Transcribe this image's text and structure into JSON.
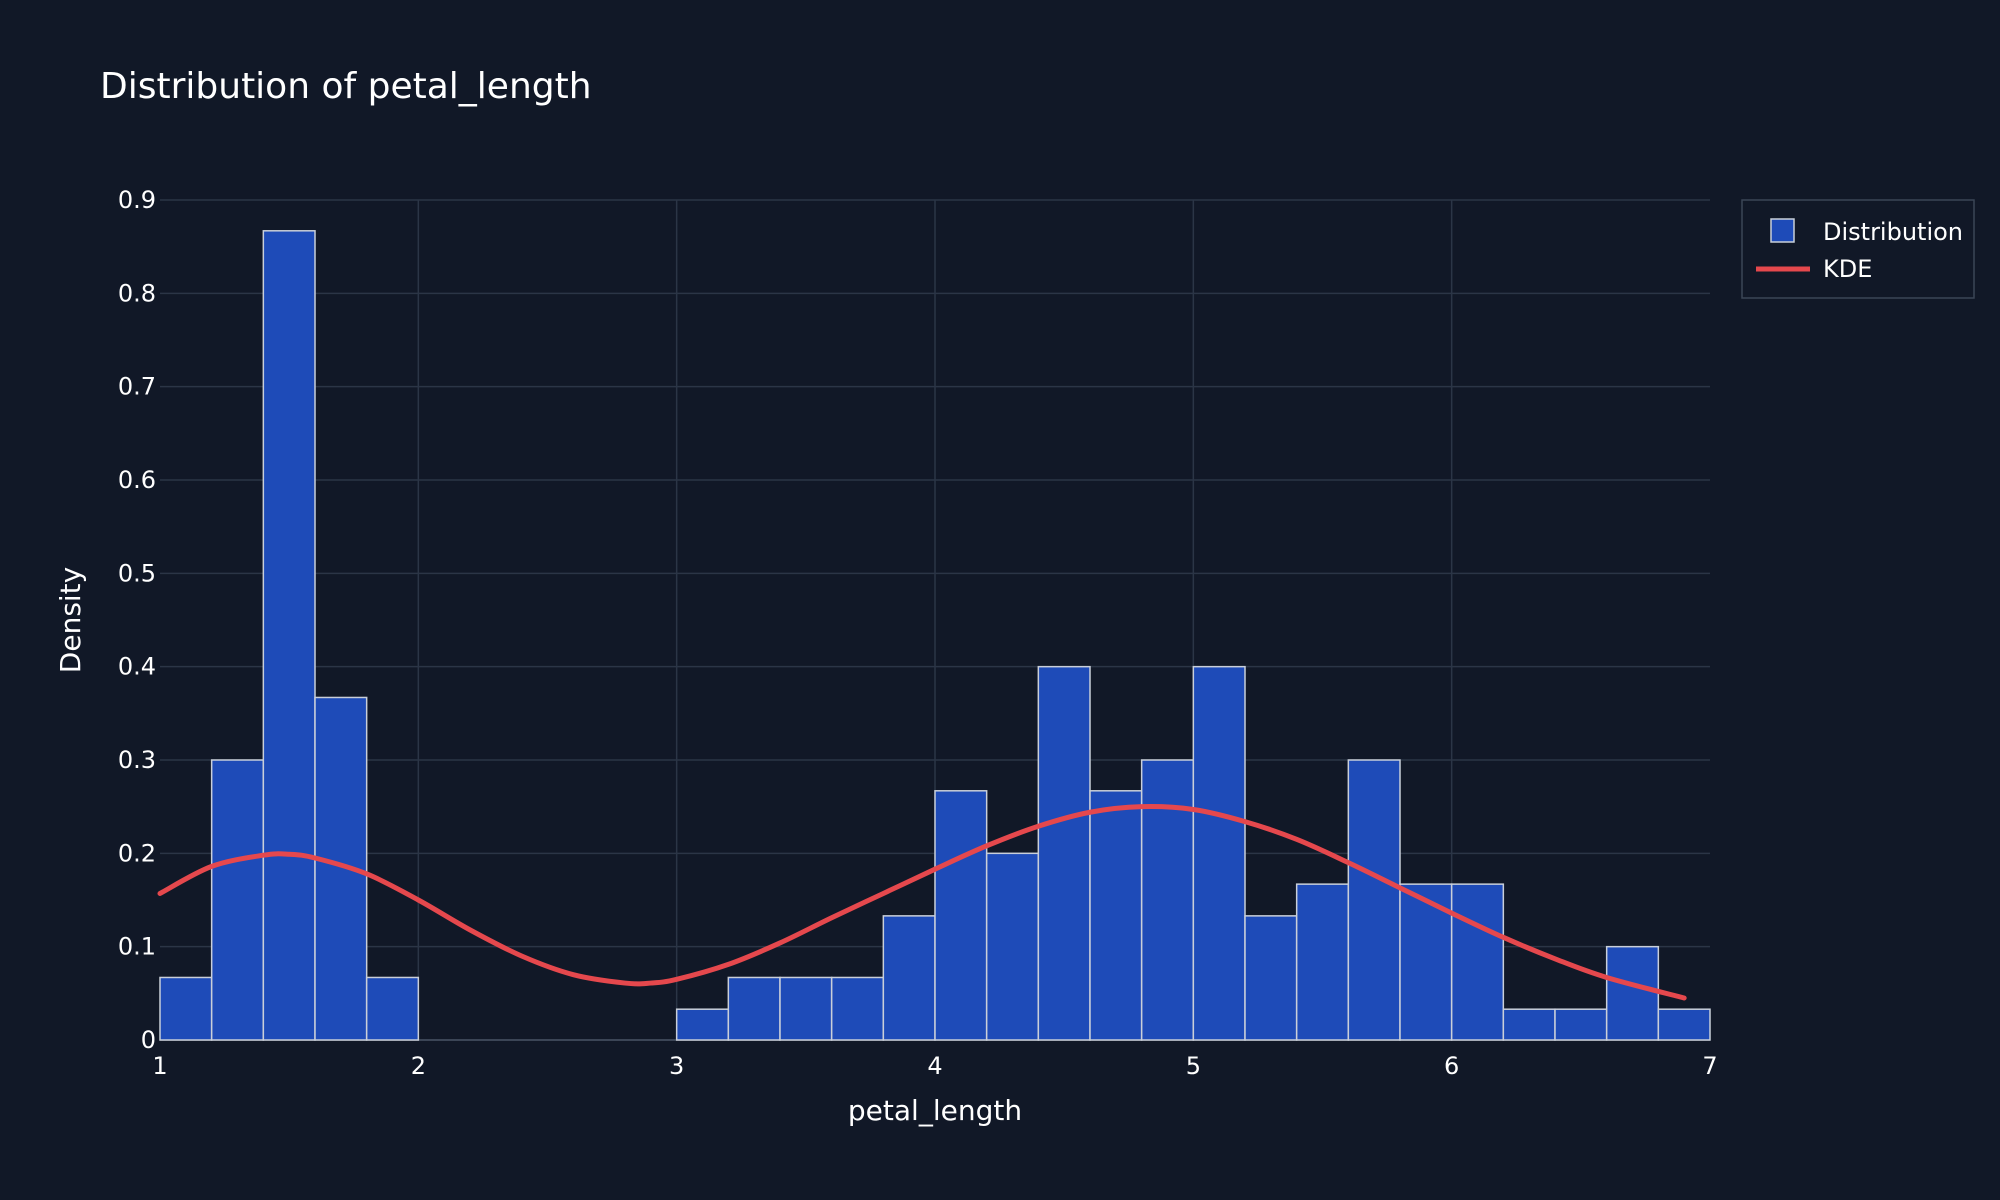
{
  "chart_data": {
    "type": "histogram",
    "title": "Distribution of petal_length",
    "xlabel": "petal_length",
    "ylabel": "Density",
    "xlim": [
      1,
      7
    ],
    "ylim": [
      0,
      0.9
    ],
    "x_ticks": [
      1,
      2,
      3,
      4,
      5,
      6,
      7
    ],
    "y_ticks": [
      0,
      0.1,
      0.2,
      0.3,
      0.4,
      0.5,
      0.6,
      0.7,
      0.8,
      0.9
    ],
    "grid": true,
    "legend_position": "top-right",
    "colors": {
      "background": "#111827",
      "bar_fill": "#1e4bb8",
      "bar_outline": "#c9cfd9",
      "kde": "#e5484d",
      "grid": "#2b3546"
    },
    "series": [
      {
        "name": "Distribution",
        "type": "bar",
        "bin_width": 0.2,
        "bin_starts": [
          1.0,
          1.2,
          1.4,
          1.6,
          1.8,
          2.0,
          2.2,
          2.4,
          2.6,
          2.8,
          3.0,
          3.2,
          3.4,
          3.6,
          3.8,
          4.0,
          4.2,
          4.4,
          4.6,
          4.8,
          5.0,
          5.2,
          5.4,
          5.6,
          5.8,
          6.0,
          6.2,
          6.4,
          6.6,
          6.8
        ],
        "values": [
          0.067,
          0.3,
          0.867,
          0.367,
          0.067,
          0,
          0,
          0,
          0,
          0,
          0.033,
          0.067,
          0.067,
          0.067,
          0.133,
          0.267,
          0.2,
          0.4,
          0.267,
          0.3,
          0.4,
          0.133,
          0.167,
          0.3,
          0.167,
          0.167,
          0.033,
          0.033,
          0.1,
          0.033
        ]
      },
      {
        "name": "KDE",
        "type": "line",
        "x": [
          1.0,
          1.2,
          1.4,
          1.5,
          1.6,
          1.8,
          2.0,
          2.2,
          2.4,
          2.6,
          2.8,
          2.9,
          3.0,
          3.2,
          3.4,
          3.6,
          3.8,
          4.0,
          4.2,
          4.4,
          4.6,
          4.8,
          5.0,
          5.2,
          5.4,
          5.6,
          5.8,
          6.0,
          6.2,
          6.4,
          6.6,
          6.9
        ],
        "y": [
          0.157,
          0.186,
          0.198,
          0.199,
          0.195,
          0.178,
          0.15,
          0.118,
          0.09,
          0.07,
          0.061,
          0.061,
          0.065,
          0.081,
          0.104,
          0.131,
          0.157,
          0.183,
          0.208,
          0.229,
          0.244,
          0.25,
          0.247,
          0.234,
          0.215,
          0.19,
          0.163,
          0.136,
          0.11,
          0.087,
          0.067,
          0.045
        ]
      }
    ]
  }
}
